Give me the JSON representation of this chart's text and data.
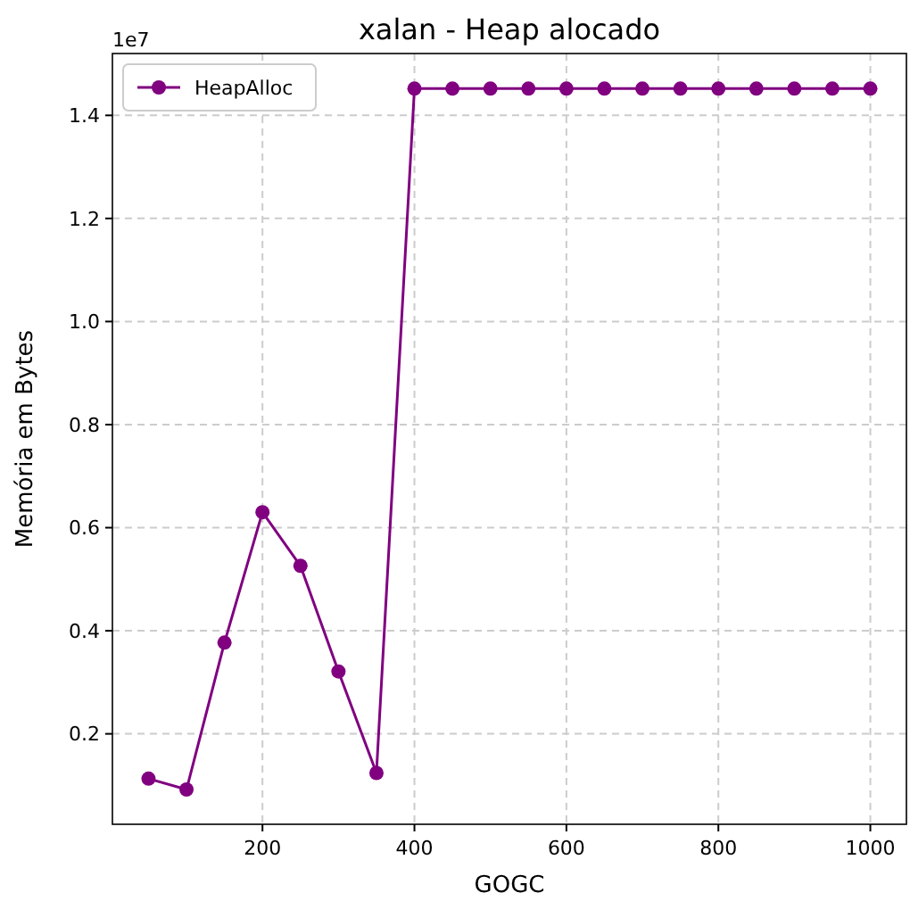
{
  "chart_data": {
    "type": "line",
    "title": "xalan - Heap alocado",
    "xlabel": "GOGC",
    "ylabel": "Memória em Bytes",
    "x": [
      50,
      100,
      150,
      200,
      250,
      300,
      350,
      400,
      450,
      500,
      550,
      600,
      650,
      700,
      750,
      800,
      850,
      900,
      950,
      1000
    ],
    "series": [
      {
        "name": "HeapAlloc",
        "color": "#800080",
        "values": [
          0.113,
          0.092,
          0.377,
          0.63,
          0.526,
          0.321,
          0.124,
          1.452,
          1.452,
          1.452,
          1.452,
          1.452,
          1.452,
          1.452,
          1.452,
          1.452,
          1.452,
          1.452,
          1.452,
          1.452
        ]
      }
    ],
    "xlim": [
      2.5,
      1047.5
    ],
    "xticks": [
      200,
      400,
      600,
      800,
      1000
    ],
    "ylim": [
      0.0245,
      1.52
    ],
    "yticks": [
      {
        "value": 0.2,
        "label": "0.2"
      },
      {
        "value": 0.4,
        "label": "0.4"
      },
      {
        "value": 0.6,
        "label": "0.6"
      },
      {
        "value": 0.8,
        "label": "0.8"
      },
      {
        "value": 1.0,
        "label": "1.0"
      },
      {
        "value": 1.2,
        "label": "1.2"
      },
      {
        "value": 1.4,
        "label": "1.4"
      }
    ],
    "annotations": [
      "1e7"
    ],
    "grid": true,
    "legend": "top left",
    "marker": "circle",
    "line_style": "solid"
  }
}
